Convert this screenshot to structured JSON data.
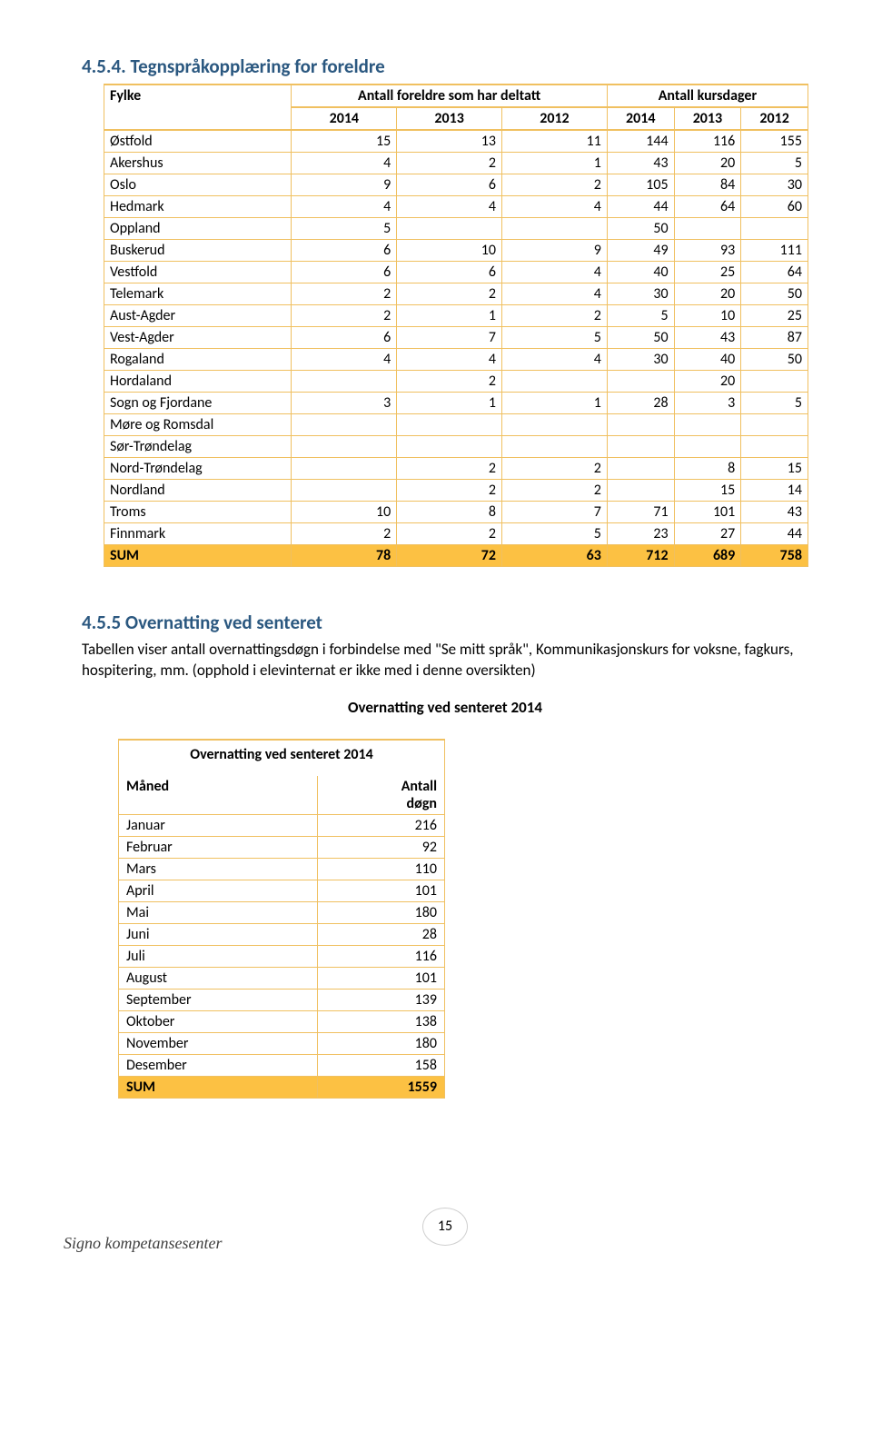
{
  "sect454": {
    "title": "4.5.4.  Tegnspråkopplæring for foreldre",
    "table": {
      "corner": "Fylke",
      "group_a": "Antall foreldre som har deltatt",
      "group_b": "Antall kursdager",
      "years": [
        "2014",
        "2013",
        "2012",
        "2014",
        "2013",
        "2012"
      ],
      "rows": [
        {
          "label": "Østfold",
          "v": [
            "15",
            "13",
            "11",
            "144",
            "116",
            "155"
          ]
        },
        {
          "label": "Akershus",
          "v": [
            "4",
            "2",
            "1",
            "43",
            "20",
            "5"
          ]
        },
        {
          "label": "Oslo",
          "v": [
            "9",
            "6",
            "2",
            "105",
            "84",
            "30"
          ]
        },
        {
          "label": "Hedmark",
          "v": [
            "4",
            "4",
            "4",
            "44",
            "64",
            "60"
          ]
        },
        {
          "label": "Oppland",
          "v": [
            "5",
            "",
            "",
            "50",
            "",
            ""
          ]
        },
        {
          "label": "Buskerud",
          "v": [
            "6",
            "10",
            "9",
            "49",
            "93",
            "111"
          ]
        },
        {
          "label": "Vestfold",
          "v": [
            "6",
            "6",
            "4",
            "40",
            "25",
            "64"
          ]
        },
        {
          "label": "Telemark",
          "v": [
            "2",
            "2",
            "4",
            "30",
            "20",
            "50"
          ]
        },
        {
          "label": "Aust-Agder",
          "v": [
            "2",
            "1",
            "2",
            "5",
            "10",
            "25"
          ]
        },
        {
          "label": "Vest-Agder",
          "v": [
            "6",
            "7",
            "5",
            "50",
            "43",
            "87"
          ]
        },
        {
          "label": "Rogaland",
          "v": [
            "4",
            "4",
            "4",
            "30",
            "40",
            "50"
          ]
        },
        {
          "label": "Hordaland",
          "v": [
            "",
            "2",
            "",
            "",
            "20",
            ""
          ]
        },
        {
          "label": "Sogn og Fjordane",
          "v": [
            "3",
            "1",
            "1",
            "28",
            "3",
            "5"
          ]
        },
        {
          "label": "Møre og Romsdal",
          "v": [
            "",
            "",
            "",
            "",
            "",
            ""
          ]
        },
        {
          "label": "Sør-Trøndelag",
          "v": [
            "",
            "",
            "",
            "",
            "",
            ""
          ]
        },
        {
          "label": "Nord-Trøndelag",
          "v": [
            "",
            "2",
            "2",
            "",
            "8",
            "15"
          ]
        },
        {
          "label": "Nordland",
          "v": [
            "",
            "2",
            "2",
            "",
            "15",
            "14"
          ]
        },
        {
          "label": "Troms",
          "v": [
            "10",
            "8",
            "7",
            "71",
            "101",
            "43"
          ]
        },
        {
          "label": "Finnmark",
          "v": [
            "2",
            "2",
            "5",
            "23",
            "27",
            "44"
          ]
        }
      ],
      "sum_label": "SUM",
      "sum": [
        "78",
        "72",
        "63",
        "712",
        "689",
        "758"
      ]
    }
  },
  "sect455": {
    "title": "4.5.5 Overnatting ved senteret",
    "para": "Tabellen viser antall overnattingsdøgn i forbindelse med \"Se mitt språk\", Kommunikasjonskurs for voksne, fagkurs, hospitering, mm. (opphold i elevinternat er ikke med i denne oversikten)",
    "subhead": "Overnatting ved senteret 2014",
    "table": {
      "title": "Overnatting ved senteret 2014",
      "col_month": "Måned",
      "col_nights_l1": "Antall",
      "col_nights_l2": "døgn",
      "rows": [
        {
          "m": "Januar",
          "n": "216"
        },
        {
          "m": "Februar",
          "n": "92"
        },
        {
          "m": "Mars",
          "n": "110"
        },
        {
          "m": "April",
          "n": "101"
        },
        {
          "m": "Mai",
          "n": "180"
        },
        {
          "m": "Juni",
          "n": "28"
        },
        {
          "m": "Juli",
          "n": "116"
        },
        {
          "m": "August",
          "n": "101"
        },
        {
          "m": "September",
          "n": "139"
        },
        {
          "m": "Oktober",
          "n": "138"
        },
        {
          "m": "November",
          "n": "180"
        },
        {
          "m": "Desember",
          "n": "158"
        }
      ],
      "sum_label": "SUM",
      "sum_value": "1559"
    }
  },
  "footer": {
    "brand": "Signo kompetansesenter",
    "page": "15"
  }
}
